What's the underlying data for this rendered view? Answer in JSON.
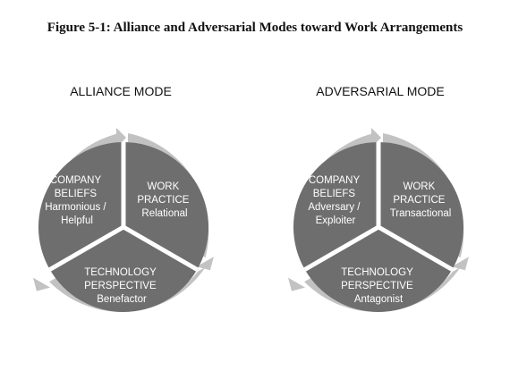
{
  "figure_title": "Figure 5-1: Alliance and Adversarial Modes toward Work Arrangements",
  "colors": {
    "segment_fill": "#6e6e6e",
    "ring_fill": "#c2c2c2",
    "text": "#ffffff",
    "divider": "#ffffff"
  },
  "diagrams": [
    {
      "title": "ALLIANCE MODE",
      "segments": [
        {
          "lines": [
            "COMPANY",
            "BELIEFS",
            "Harmonious /",
            "Helpful"
          ]
        },
        {
          "lines": [
            "WORK",
            "PRACTICE",
            "Relational"
          ]
        },
        {
          "lines": [
            "TECHNOLOGY",
            "PERSPECTIVE",
            "Benefactor"
          ]
        }
      ]
    },
    {
      "title": "ADVERSARIAL MODE",
      "segments": [
        {
          "lines": [
            "COMPANY",
            "BELIEFS",
            "Adversary /",
            "Exploiter"
          ]
        },
        {
          "lines": [
            "WORK",
            "PRACTICE",
            "Transactional"
          ]
        },
        {
          "lines": [
            "TECHNOLOGY",
            "PERSPECTIVE",
            "Antagonist"
          ]
        }
      ]
    }
  ]
}
